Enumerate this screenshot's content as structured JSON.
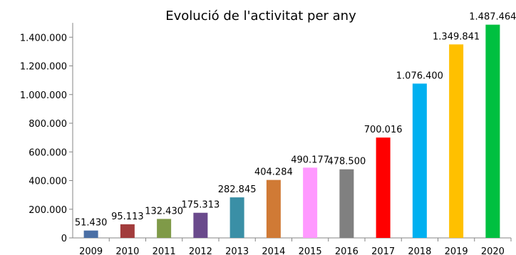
{
  "chart_data": {
    "type": "bar",
    "title": "Evolució de l'activitat per any",
    "xlabel": "",
    "ylabel": "",
    "categories": [
      "2009",
      "2010",
      "2011",
      "2012",
      "2013",
      "2014",
      "2015",
      "2016",
      "2017",
      "2018",
      "2019",
      "2020"
    ],
    "values": [
      51430,
      95113,
      132430,
      175313,
      282845,
      404284,
      490177,
      478500,
      700016,
      1076400,
      1349841,
      1487464
    ],
    "value_labels": [
      "51.430",
      "95.113",
      "132.430",
      "175.313",
      "282.845",
      "404.284",
      "490.177",
      "478.500",
      "700.016",
      "1.076.400",
      "1.349.841",
      "1.487.464"
    ],
    "colors": [
      "#4a6fa5",
      "#a23c3c",
      "#7f9a48",
      "#6a4a8c",
      "#3a8fa6",
      "#d07a35",
      "#ff99ff",
      "#808080",
      "#ff0000",
      "#00b0f0",
      "#ffc000",
      "#00c040"
    ],
    "ylim": [
      0,
      1500000
    ],
    "yticks": [
      0,
      200000,
      400000,
      600000,
      800000,
      1000000,
      1200000,
      1400000
    ],
    "ytick_labels": [
      "0",
      "200.000",
      "400.000",
      "600.000",
      "800.000",
      "1.000.000",
      "1.200.000",
      "1.400.000"
    ],
    "grid": false,
    "legend": "none"
  }
}
